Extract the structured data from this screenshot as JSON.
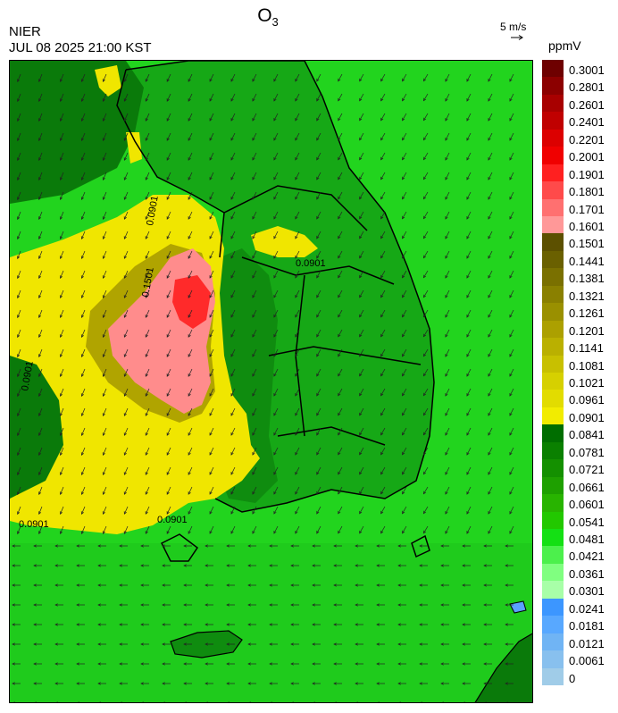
{
  "header": {
    "title": "O",
    "title_sub": "3",
    "agency": "NIER",
    "datetime": "JUL 08 2025 21:00 KST",
    "wind_ref": "5 m/s",
    "unit": "ppmV"
  },
  "colorbar": {
    "labels": [
      "0.3001",
      "0.2801",
      "0.2601",
      "0.2401",
      "0.2201",
      "0.2001",
      "0.1901",
      "0.1801",
      "0.1701",
      "0.1601",
      "0.1501",
      "0.1441",
      "0.1381",
      "0.1321",
      "0.1261",
      "0.1201",
      "0.1141",
      "0.1081",
      "0.1021",
      "0.0961",
      "0.0901",
      "0.0841",
      "0.0781",
      "0.0721",
      "0.0661",
      "0.0601",
      "0.0541",
      "0.0481",
      "0.0421",
      "0.0361",
      "0.0301",
      "0.0241",
      "0.0181",
      "0.0121",
      "0.0061",
      "0"
    ],
    "colors": [
      "#6e0000",
      "#8c0000",
      "#a80000",
      "#c00000",
      "#dc0000",
      "#f00000",
      "#ff2020",
      "#ff4a4a",
      "#ff7070",
      "#ff9898",
      "#5c5000",
      "#6a6000",
      "#7a7000",
      "#8a8000",
      "#9a9000",
      "#aca000",
      "#bab000",
      "#c8c000",
      "#d6d000",
      "#e2dc00",
      "#f2ec00",
      "#006e00",
      "#0a8000",
      "#149000",
      "#1ea000",
      "#28b400",
      "#22c800",
      "#14e014",
      "#4cf04c",
      "#80ff80",
      "#a8ffa8",
      "#3c96ff",
      "#58a8ff",
      "#70b4f4",
      "#88c0ee",
      "#a0cce8"
    ]
  },
  "map": {
    "contour_labels": [
      "0.0901",
      "0.1501",
      "0.0901",
      "0.0901",
      "0.0901",
      "0.0901"
    ],
    "colors": {
      "sea_green": "#22d41e",
      "land_green": "#16a816",
      "dark_green": "#0a7a0a",
      "yellow": "#f0e600",
      "olive": "#8a8000",
      "pink": "#ff8c8c",
      "red": "#ff2a2a"
    }
  }
}
